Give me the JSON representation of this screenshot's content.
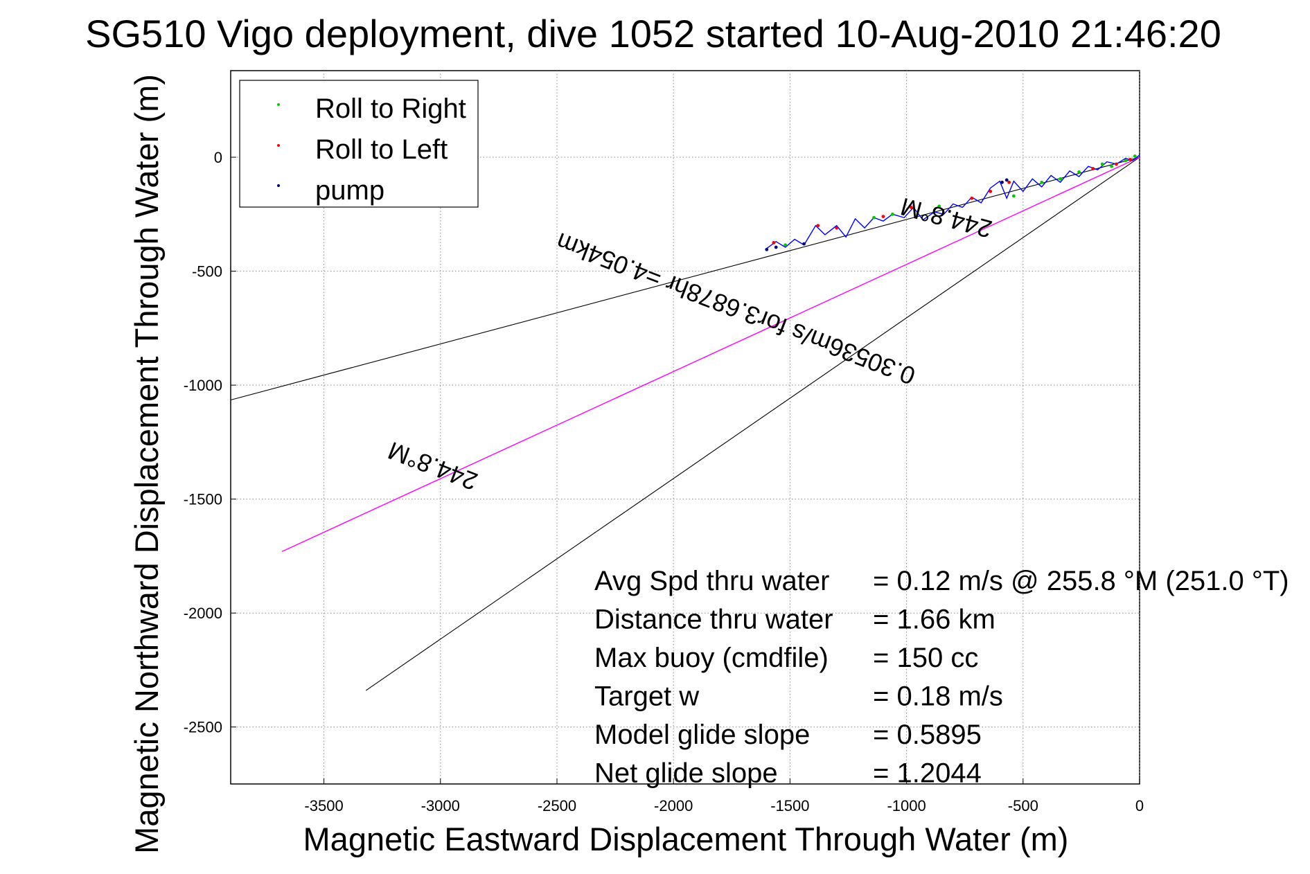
{
  "chart_data": {
    "type": "line",
    "title": "SG5̵̲0 Vigo deployment, dive 1052 started 10-Aug-2010 21:46:20",
    "title_display": "SG510 Vigo deployment, dive 1052 started 10-Aug-2010 21:46:20",
    "xlabel": "Magnetic Eastward Displacement Through Water (m)",
    "ylabel": "Magnetic Northward Displacement Through Water (m)",
    "xlim": [
      -3900,
      0
    ],
    "ylim": [
      -2750,
      380
    ],
    "xticks": [
      -3500,
      -3000,
      -2500,
      -2000,
      -1500,
      -1000,
      -500,
      0
    ],
    "yticks": [
      0,
      -500,
      -1000,
      -1500,
      -2000,
      -2500
    ],
    "grid": true,
    "legend_position": "top-left",
    "legend": [
      {
        "label": "Roll to Right",
        "color": "#00cc00"
      },
      {
        "label": "Roll to Left",
        "color": "#ff0000"
      },
      {
        "label": "pump",
        "color": "#000080"
      }
    ],
    "track": {
      "color": "#0000ff",
      "x": [
        -1600,
        -1560,
        -1520,
        -1480,
        -1440,
        -1390,
        -1350,
        -1300,
        -1260,
        -1220,
        -1180,
        -1140,
        -1100,
        -1060,
        -1010,
        -970,
        -930,
        -880,
        -840,
        -800,
        -760,
        -720,
        -680,
        -640,
        -600,
        -570,
        -540,
        -500,
        -460,
        -420,
        -380,
        -340,
        -300,
        -260,
        -220,
        -180,
        -140,
        -100,
        -60,
        -30,
        0
      ],
      "y": [
        -400,
        -370,
        -395,
        -360,
        -385,
        -300,
        -340,
        -300,
        -350,
        -270,
        -310,
        -265,
        -280,
        -250,
        -265,
        -220,
        -275,
        -240,
        -250,
        -205,
        -220,
        -175,
        -200,
        -135,
        -105,
        -180,
        -105,
        -150,
        -95,
        -130,
        -80,
        -110,
        -60,
        -85,
        -40,
        -55,
        -20,
        -30,
        -5,
        -15,
        10
      ]
    },
    "roll_right_points": {
      "x": [
        -1520,
        -1140,
        -1060,
        -860,
        -540,
        -420,
        -340,
        -260,
        -160,
        -120,
        -60,
        -20
      ],
      "y": [
        -385,
        -265,
        -250,
        -215,
        -170,
        -110,
        -95,
        -65,
        -30,
        -40,
        -15,
        5
      ]
    },
    "roll_left_points": {
      "x": [
        -1570,
        -1380,
        -1300,
        -1100,
        -980,
        -720,
        -640,
        -560,
        -200,
        -100,
        -40
      ],
      "y": [
        -375,
        -300,
        -310,
        -260,
        -220,
        -180,
        -150,
        -110,
        -50,
        -30,
        -10
      ]
    },
    "pump_points": {
      "x": [
        -1600,
        -1560,
        -1440,
        -590,
        -570
      ],
      "y": [
        -405,
        -395,
        -380,
        -110,
        -100
      ]
    },
    "bearing_lines": [
      {
        "name": "upper bearing line",
        "color": "#000000",
        "x": [
          0,
          -3900
        ],
        "y": [
          0,
          -1065
        ]
      },
      {
        "name": "lower bearing line",
        "color": "#000000",
        "x": [
          0,
          -3320
        ],
        "y": [
          0,
          -2340
        ]
      },
      {
        "name": "mean heading line",
        "color": "#ff00ff",
        "x": [
          0,
          -3680
        ],
        "y": [
          0,
          -1730
        ]
      }
    ],
    "line_labels": [
      {
        "text": "244.8°M",
        "x": -820,
        "y": -230,
        "angle_deg": 195
      },
      {
        "text": "0.30536m/s for3.6878hr =4.054km",
        "x": -1720,
        "y": -630,
        "angle_deg": 201
      },
      {
        "text": "244.8°M",
        "x": -3020,
        "y": -1320,
        "angle_deg": 201
      }
    ],
    "stats": [
      {
        "label": "Avg Spd thru water",
        "value": "=  0.12 m/s @ 255.8 °M (251.0 °T)"
      },
      {
        "label": "Distance thru water",
        "value": "=  1.66 km"
      },
      {
        "label": "Max buoy (cmdfile)",
        "value": "= 150 cc"
      },
      {
        "label": "Target w",
        "value": "= 0.18 m/s"
      },
      {
        "label": "Model glide slope",
        "value": "= 0.5895"
      },
      {
        "label": "Net glide slope",
        "value": "= 1.2044"
      }
    ]
  }
}
